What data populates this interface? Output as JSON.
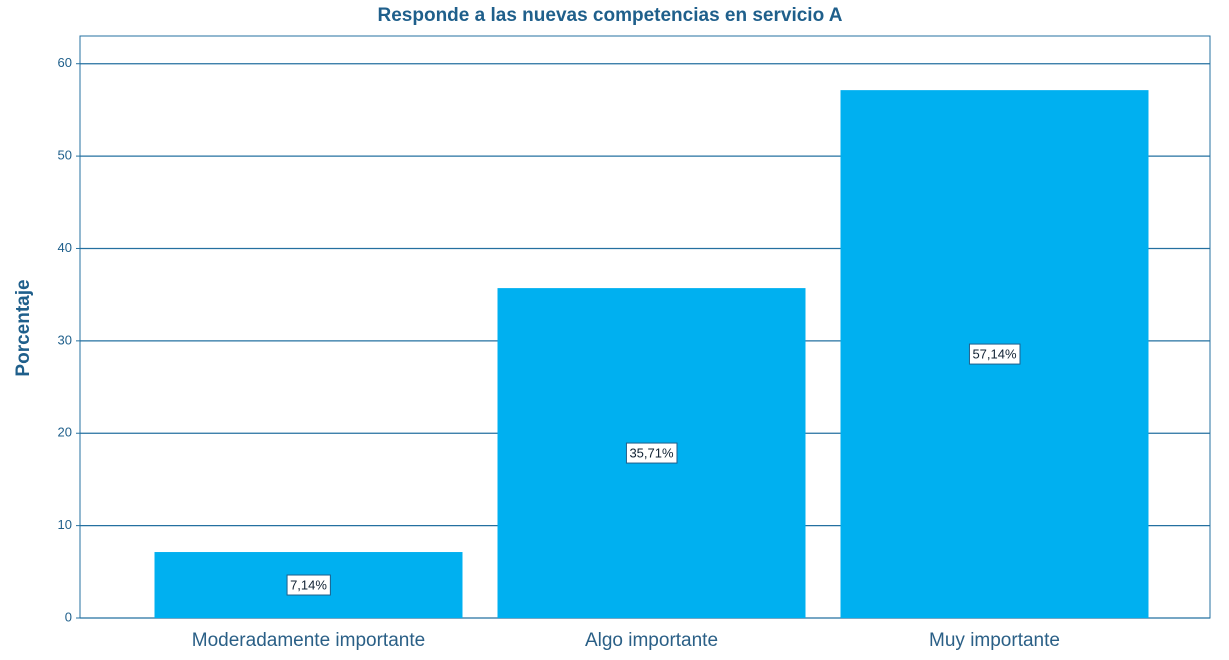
{
  "chart_data": {
    "type": "bar",
    "title": "Responde a las nuevas competencias en servicio A",
    "y_label": "Porcentaje",
    "categories": [
      "Moderadamente importante",
      "Algo importante",
      "Muy importante"
    ],
    "values": [
      7.14,
      35.71,
      57.14
    ],
    "value_labels": [
      "7,14%",
      "35,71%",
      "57,14%"
    ],
    "color": "#00b0f0",
    "ylim": [
      0,
      63
    ],
    "yticks": [
      0,
      10,
      20,
      30,
      40,
      50,
      60
    ],
    "grid": true
  }
}
